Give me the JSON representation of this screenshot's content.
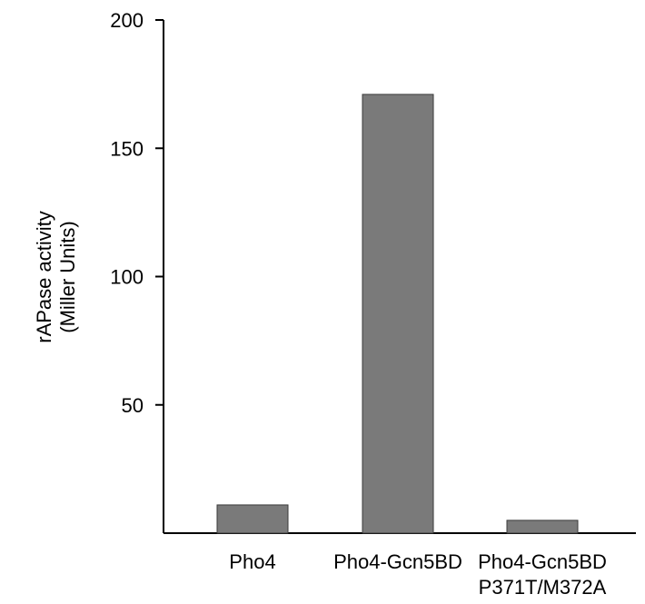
{
  "chart_data": {
    "type": "bar",
    "categories": [
      [
        "Pho4"
      ],
      [
        "Pho4-Gcn5BD"
      ],
      [
        "Pho4-Gcn5BD",
        "P371T/M372A"
      ]
    ],
    "values": [
      11,
      171,
      5
    ],
    "title": "",
    "xlabel": "",
    "ylabel_lines": [
      "rAPase activity",
      "(Miller Units)"
    ],
    "ylim": [
      0,
      200
    ],
    "yticks": [
      50,
      100,
      150,
      200
    ],
    "grid": false,
    "legend": "none",
    "bar_color": "#7a7a7a",
    "bar_edge_color": "#3a3a3a"
  }
}
